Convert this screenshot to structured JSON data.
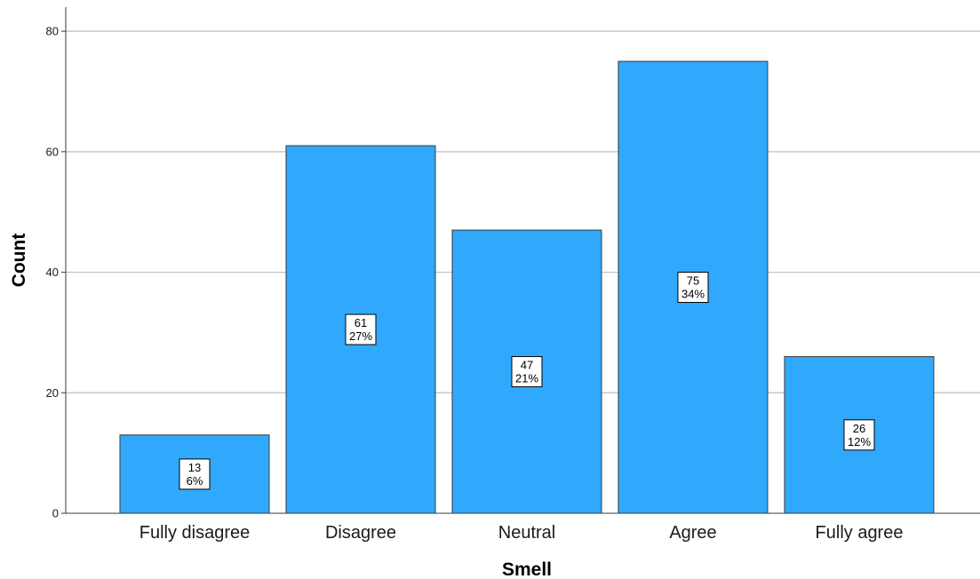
{
  "chart_data": {
    "type": "bar",
    "categories": [
      "Fully disagree",
      "Disagree",
      "Neutral",
      "Agree",
      "Fully agree"
    ],
    "values": [
      13,
      61,
      47,
      75,
      26
    ],
    "percent_labels": [
      "6%",
      "27%",
      "21%",
      "34%",
      "12%"
    ],
    "xlabel": "Smell",
    "ylabel": "Count",
    "ylim": [
      0,
      84
    ],
    "yticks": [
      0,
      20,
      40,
      60,
      80
    ],
    "grid": true,
    "bar_color": "#30a9fd",
    "bar_edge_color": "#3a3a3a",
    "gridline_color": "#bfbfbf"
  }
}
